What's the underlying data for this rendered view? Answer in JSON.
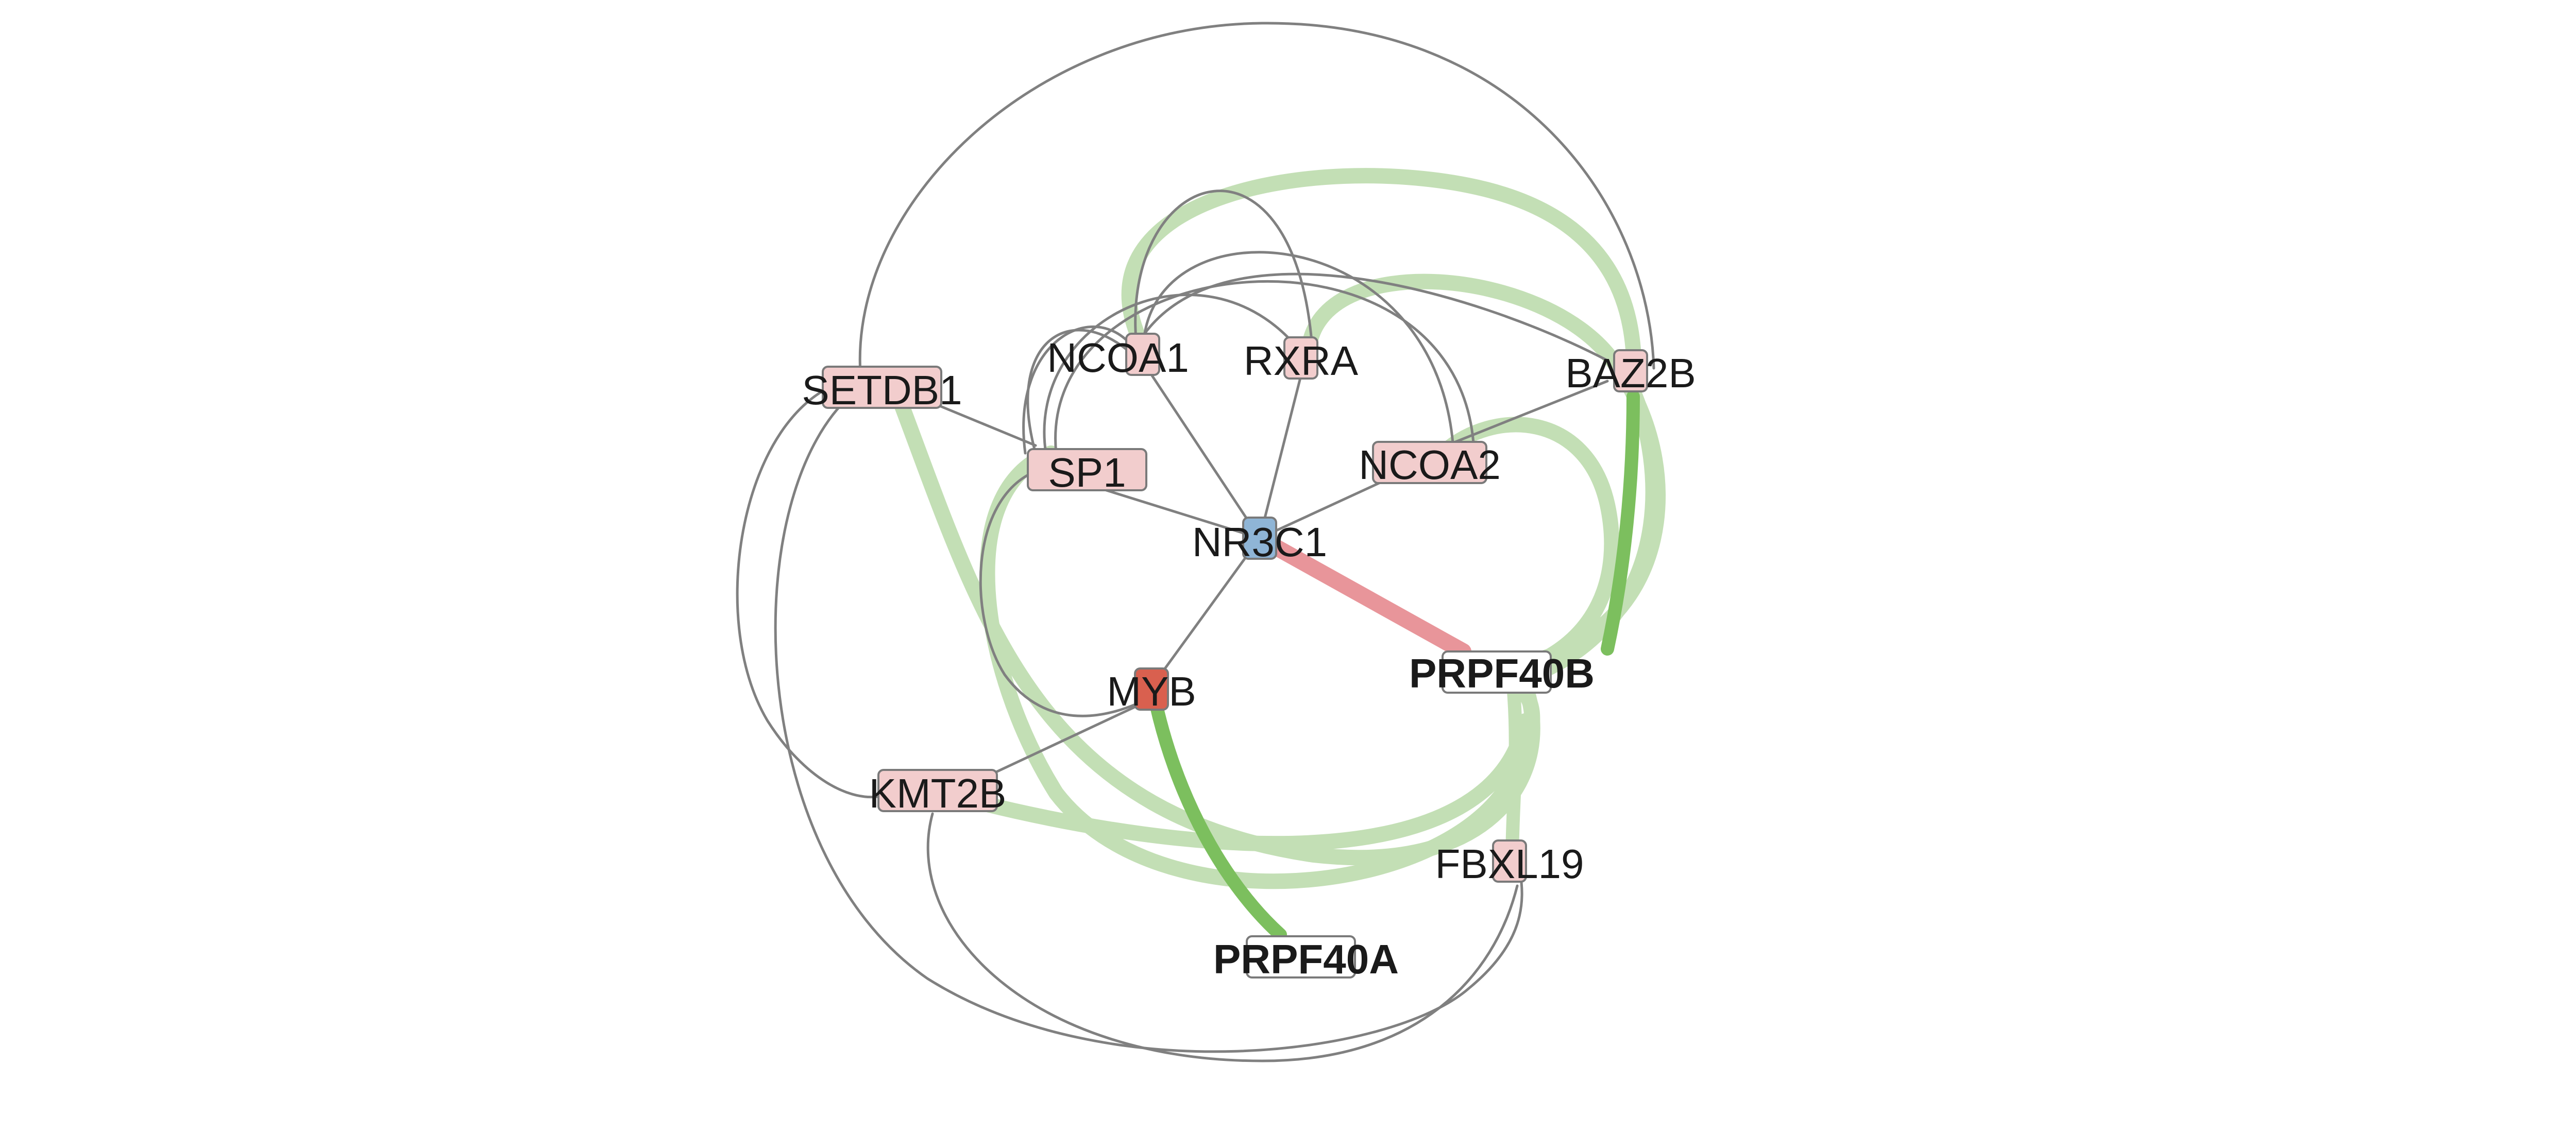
{
  "nodes": [
    {
      "id": "NR3C1",
      "label": "NR3C1",
      "color": "#8fb5d6",
      "bold": false
    },
    {
      "id": "NCOA1",
      "label": "NCOA1",
      "color": "#f2cdcd",
      "bold": false
    },
    {
      "id": "RXRA",
      "label": "RXRA",
      "color": "#f2cdcd",
      "bold": false
    },
    {
      "id": "BAZ2B",
      "label": "BAZ2B",
      "color": "#f2cdcd",
      "bold": false
    },
    {
      "id": "SETDB1",
      "label": "SETDB1",
      "color": "#f2cdcd",
      "bold": false
    },
    {
      "id": "SP1",
      "label": "SP1",
      "color": "#f2cdcd",
      "bold": false
    },
    {
      "id": "NCOA2",
      "label": "NCOA2",
      "color": "#f2cdcd",
      "bold": false
    },
    {
      "id": "MYB",
      "label": "MYB",
      "color": "#d9604f",
      "bold": false
    },
    {
      "id": "KMT2B",
      "label": "KMT2B",
      "color": "#f2cdcd",
      "bold": false
    },
    {
      "id": "PRPF40B",
      "label": "PRPF40B",
      "color": "#ffffff",
      "bold": true
    },
    {
      "id": "FBXL19",
      "label": "FBXL19",
      "color": "#f2cdcd",
      "bold": false
    },
    {
      "id": "PRPF40A",
      "label": "PRPF40A",
      "color": "#ffffff",
      "bold": true
    }
  ],
  "edge_colors": {
    "gray": "#808080",
    "light_green": "#c3dfb5",
    "green": "#7cbf5e",
    "red": "#e8959a"
  }
}
